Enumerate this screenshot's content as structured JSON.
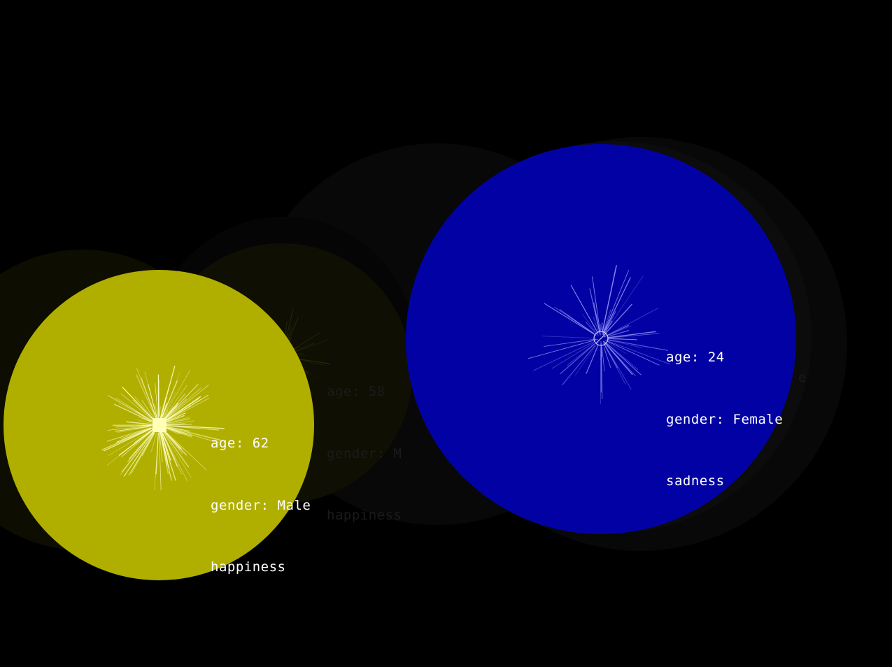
{
  "colors": {
    "background": "#000000",
    "happiness": "#b0af00",
    "sadness": "#0202a4",
    "label": "#ffffff"
  },
  "bubbles": [
    {
      "id": "ghost-far-left",
      "opacity": 0.06,
      "color": "#b0af00",
      "center_icon": "none-icon",
      "label": null
    },
    {
      "id": "ghost-middle",
      "opacity": 0.05,
      "color": "#8a8a8a",
      "center_icon": "none-icon",
      "label": null
    },
    {
      "id": "ghost-right",
      "opacity": 0.05,
      "color": "#8a8a8a",
      "center_icon": "none-icon",
      "label": null
    },
    {
      "id": "faded-happiness",
      "opacity": 0.09,
      "color": "#b0af00",
      "center_icon": "square-marker-icon",
      "label": {
        "age": "age: 58",
        "gender": "gender: M",
        "emotion": "happiness"
      }
    },
    {
      "id": "happiness-main",
      "opacity": 1,
      "color": "#b0af00",
      "center_icon": "square-marker-icon",
      "label": {
        "age": "age: 62",
        "gender": "gender: Male",
        "emotion": "happiness"
      }
    },
    {
      "id": "sadness-main",
      "opacity": 1,
      "color": "#0202a4",
      "center_icon": "crossed-circle-marker-icon",
      "label": {
        "age": "age: 24",
        "gender": "gender: Female",
        "emotion": "sadness"
      }
    }
  ],
  "ghost_text_suffix": "e"
}
